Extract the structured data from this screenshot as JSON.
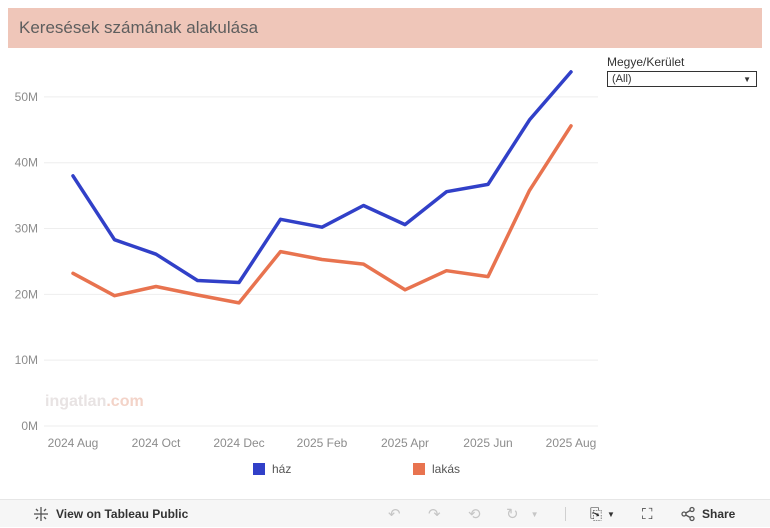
{
  "title": "Keresések számának alakulása",
  "filter": {
    "label": "Megye/Kerület",
    "value": "(All)"
  },
  "watermark": {
    "text1": "ingatlan",
    "text2": ".com"
  },
  "chart_data": {
    "type": "line",
    "title": "Keresések számának alakulása",
    "x": [
      "2024 Aug",
      "2024 Sep",
      "2024 Oct",
      "2024 Nov",
      "2024 Dec",
      "2025 Jan",
      "2025 Feb",
      "2025 Mar",
      "2025 Apr",
      "2025 May",
      "2025 Jun",
      "2025 Jul",
      "2025 Aug"
    ],
    "xtick_labels": [
      "2024 Aug",
      "2024 Oct",
      "2024 Dec",
      "2025 Feb",
      "2025 Apr",
      "2025 Jun",
      "2025 Aug"
    ],
    "ytick_labels": [
      "0M",
      "10M",
      "20M",
      "30M",
      "40M",
      "50M"
    ],
    "ylim": [
      0,
      55000000
    ],
    "grid": true,
    "legend_position": "bottom",
    "series": [
      {
        "name": "ház",
        "color": "#3140c8",
        "values": [
          38000000,
          28300000,
          26100000,
          22100000,
          21800000,
          31400000,
          30200000,
          33500000,
          30600000,
          35600000,
          36700000,
          46500000,
          53800000
        ]
      },
      {
        "name": "lakás",
        "color": "#e8734f",
        "values": [
          23200000,
          19800000,
          21200000,
          19900000,
          18700000,
          26500000,
          25300000,
          24600000,
          20700000,
          23600000,
          22700000,
          35800000,
          45600000
        ]
      }
    ]
  },
  "toolbar": {
    "view_label": "View on Tableau Public",
    "share_label": "Share",
    "icons": [
      "tableau-logo-icon",
      "undo-icon",
      "redo-icon",
      "revert-icon",
      "refresh-icon",
      "pause-icon",
      "download-icon",
      "fullscreen-icon",
      "share-icon"
    ]
  }
}
